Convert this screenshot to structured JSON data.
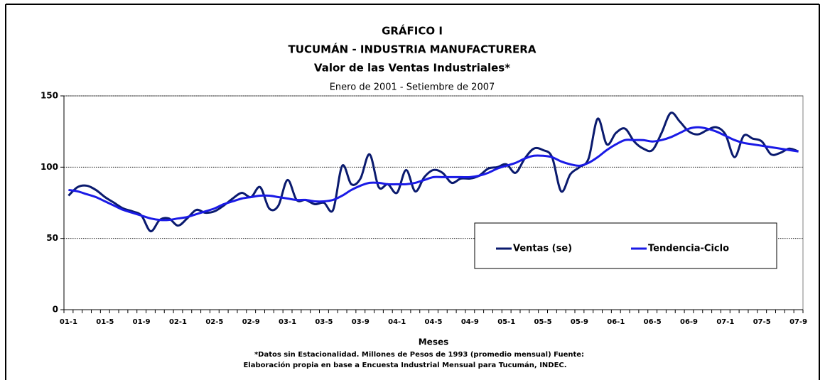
{
  "chart_data": {
    "type": "line",
    "title": [
      "GRÁFICO I",
      "TUCUMÁN - INDUSTRIA MANUFACTURERA",
      "Valor de las Ventas Industriales*"
    ],
    "subtitle": "Enero de 2001 - Setiembre de 2007",
    "x_label": "Meses",
    "notes": [
      "*Datos sin Estacionalidad. Millones de Pesos de 1993 (promedio mensual) Fuente:",
      "Elaboración propia en base a Encuesta Industrial Mensual para Tucumán, INDEC."
    ],
    "categories": [
      "01-1",
      null,
      null,
      null,
      "01-5",
      null,
      null,
      null,
      "01-9",
      null,
      null,
      null,
      "02-1",
      null,
      null,
      null,
      "02-5",
      null,
      null,
      null,
      "02-9",
      null,
      null,
      null,
      "03-1",
      null,
      null,
      null,
      "03-5",
      null,
      null,
      null,
      "03-9",
      null,
      null,
      null,
      "04-1",
      null,
      null,
      null,
      "04-5",
      null,
      null,
      null,
      "04-9",
      null,
      null,
      null,
      "05-1",
      null,
      null,
      null,
      "05-5",
      null,
      null,
      null,
      "05-9",
      null,
      null,
      null,
      "06-1",
      null,
      null,
      null,
      "06-5",
      null,
      null,
      null,
      "06-9",
      null,
      null,
      null,
      "07-1",
      null,
      null,
      null,
      "07-5",
      null,
      null,
      null,
      "07-9"
    ],
    "series": [
      {
        "name": "Ventas (se)",
        "color": "#0a1a6e",
        "values": [
          80,
          86,
          87,
          84,
          79,
          75,
          71,
          69,
          66,
          55,
          63,
          64,
          59,
          64,
          70,
          68,
          69,
          73,
          78,
          82,
          79,
          86,
          71,
          73,
          91,
          77,
          77,
          74,
          75,
          70,
          101,
          88,
          92,
          109,
          86,
          88,
          82,
          98,
          83,
          93,
          98,
          96,
          89,
          92,
          92,
          94,
          99,
          100,
          102,
          96,
          106,
          113,
          112,
          107,
          83,
          95,
          100,
          106,
          134,
          116,
          124,
          127,
          118,
          113,
          112,
          124,
          138,
          132,
          125,
          123,
          126,
          128,
          123,
          107,
          122,
          120,
          118,
          109,
          110,
          113,
          111
        ]
      },
      {
        "name": "Tendencia-Ciclo",
        "color": "#1a1ae6",
        "values": [
          84,
          83,
          81,
          79,
          76,
          73,
          70,
          68,
          66,
          64,
          63,
          63,
          64,
          65,
          67,
          69,
          71,
          74,
          76,
          78,
          79,
          80,
          80,
          79,
          78,
          77,
          77,
          76,
          76,
          77,
          80,
          84,
          87,
          89,
          89,
          88,
          88,
          88,
          89,
          91,
          93,
          93,
          93,
          93,
          93,
          94,
          96,
          99,
          101,
          103,
          106,
          108,
          108,
          107,
          104,
          102,
          101,
          103,
          107,
          112,
          116,
          119,
          119,
          119,
          118,
          119,
          121,
          124,
          127,
          128,
          127,
          125,
          122,
          119,
          117,
          116,
          115,
          114,
          113,
          112,
          111
        ]
      }
    ],
    "ylim": [
      0,
      150
    ],
    "yticks": [
      0,
      50,
      100,
      150
    ],
    "grid": true,
    "legend": "lower right"
  }
}
